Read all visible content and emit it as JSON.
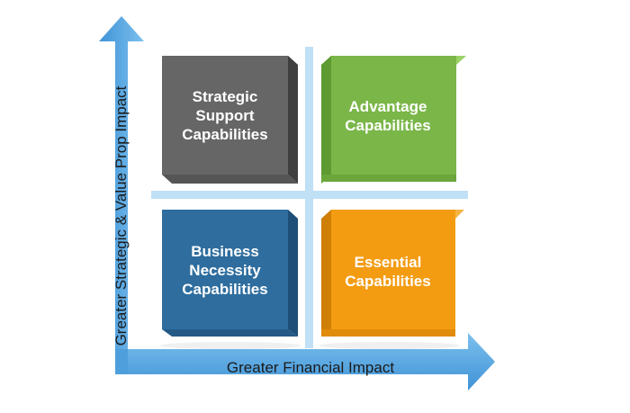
{
  "axes": {
    "x_label": "Greater Financial Impact",
    "y_label": "Greater Strategic & Value Prop Impact"
  },
  "quadrants": {
    "top_left": {
      "line1": "Strategic",
      "line2": "Support",
      "line3": "Capabilities",
      "color": "#666666"
    },
    "top_right": {
      "line1": "Advantage",
      "line2": "Capabilities",
      "color": "#7ab648"
    },
    "bottom_left": {
      "line1": "Business",
      "line2": "Necessity",
      "line3": "Capabilities",
      "color": "#2e6d9e"
    },
    "bottom_right": {
      "line1": "Essential",
      "line2": "Capabilities",
      "color": "#f39c12"
    }
  },
  "colors": {
    "axis_arrow": "#5aa7e0",
    "divider": "#bfe0f5"
  }
}
